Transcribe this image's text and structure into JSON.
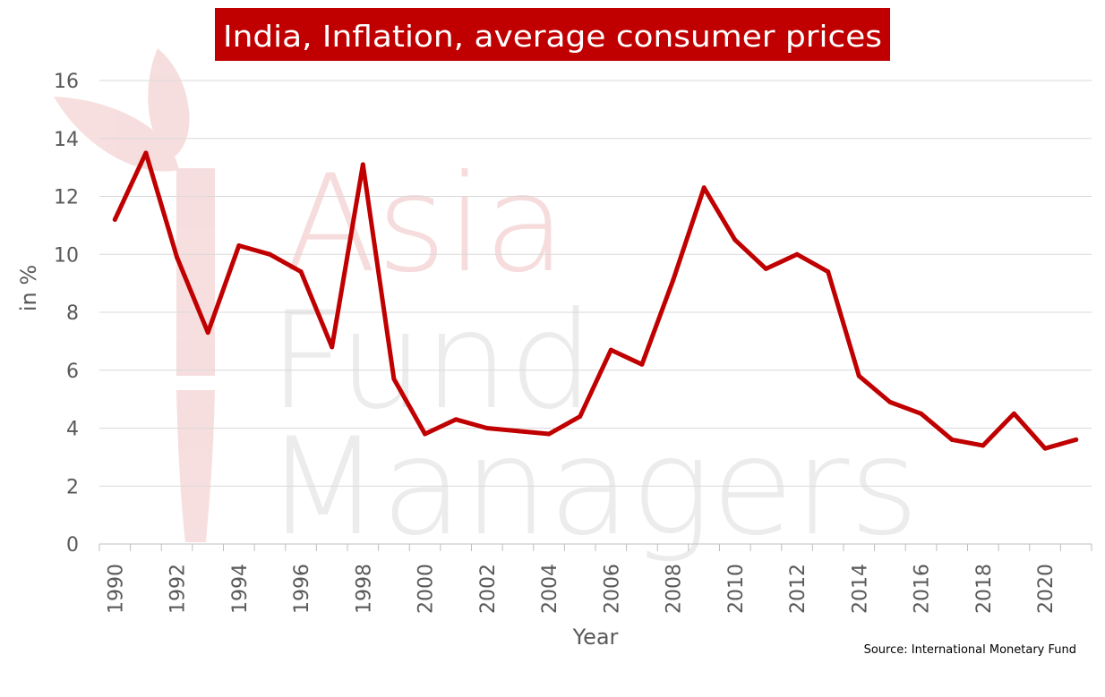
{
  "chart_data": {
    "type": "line",
    "title": "India, Inflation, average consumer prices",
    "xlabel": "Year",
    "ylabel": "in %",
    "source": "Source: International Monetary Fund",
    "x": [
      1990,
      1991,
      1992,
      1993,
      1994,
      1995,
      1996,
      1997,
      1998,
      1999,
      2000,
      2001,
      2002,
      2003,
      2004,
      2005,
      2006,
      2007,
      2008,
      2009,
      2010,
      2011,
      2012,
      2013,
      2014,
      2015,
      2016,
      2017,
      2018,
      2019,
      2020,
      2021
    ],
    "x_tick_labels": [
      "1990",
      "1992",
      "1994",
      "1996",
      "1998",
      "2000",
      "2002",
      "2004",
      "2006",
      "2008",
      "2010",
      "2012",
      "2014",
      "2016",
      "2018",
      "2020"
    ],
    "y_ticks": [
      0,
      2,
      4,
      6,
      8,
      10,
      12,
      14,
      16
    ],
    "ylim": [
      0,
      16
    ],
    "grid": "horizontal",
    "series": [
      {
        "values": [
          11.2,
          13.5,
          9.9,
          7.3,
          10.3,
          10.0,
          9.4,
          6.8,
          13.1,
          5.7,
          3.8,
          4.3,
          4.0,
          3.9,
          3.8,
          4.4,
          6.7,
          6.2,
          9.1,
          12.3,
          10.5,
          9.5,
          10.0,
          9.4,
          5.8,
          4.9,
          4.5,
          3.6,
          3.4,
          4.5,
          3.3,
          3.6
        ],
        "color": "#c00000"
      }
    ]
  },
  "watermark": {
    "lines": [
      "Asia",
      "Fund",
      "Managers"
    ]
  }
}
